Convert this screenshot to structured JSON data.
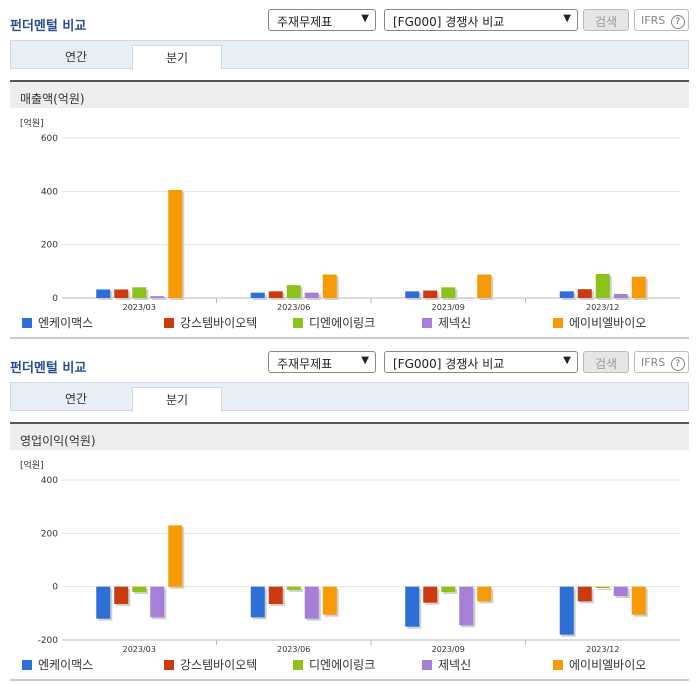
{
  "colors": [
    "#2d6fd6",
    "#cc3a12",
    "#8cc21a",
    "#a680d8",
    "#f79a06"
  ],
  "panels": [
    {
      "title": "펀더멘털 비교",
      "select1": "주재무제표",
      "select2": "[FG000] 경쟁사 비교",
      "search_label": "검색",
      "ifrs_label": "IFRS",
      "help_icon": "?",
      "tabs": [
        "연간",
        "분기"
      ],
      "active_tab": 1,
      "section_title": "매출액(억원)",
      "chart_data": {
        "type": "bar",
        "unit": "[억원]",
        "ylim": [
          0,
          600
        ],
        "yticks": [
          "600",
          "400",
          "200",
          "0"
        ],
        "categories": [
          "2023/03",
          "2023/06",
          "2023/09",
          "2023/12"
        ],
        "series": [
          {
            "name": "엔케이맥스",
            "values": [
              32,
              20,
              25,
              25
            ]
          },
          {
            "name": "강스템바이오텍",
            "values": [
              32,
              25,
              28,
              33
            ]
          },
          {
            "name": "디엔에이링크",
            "values": [
              40,
              48,
              40,
              90
            ]
          },
          {
            "name": "제넥신",
            "values": [
              7,
              20,
              0,
              15
            ]
          },
          {
            "name": "에이비엘바이오",
            "values": [
              405,
              88,
              88,
              80
            ]
          }
        ]
      }
    },
    {
      "title": "펀더멘털 비교",
      "select1": "주재무제표",
      "select2": "[FG000] 경쟁사 비교",
      "search_label": "검색",
      "ifrs_label": "IFRS",
      "help_icon": "?",
      "tabs": [
        "연간",
        "분기"
      ],
      "active_tab": 1,
      "section_title": "영업이익(억원)",
      "chart_data": {
        "type": "bar",
        "unit": "[억원]",
        "ylim": [
          -200,
          400
        ],
        "yticks": [
          "400",
          "200",
          "0",
          "-200"
        ],
        "categories": [
          "2023/03",
          "2023/06",
          "2023/09",
          "2023/12"
        ],
        "series": [
          {
            "name": "엔케이맥스",
            "values": [
              -120,
              -115,
              -150,
              -180
            ]
          },
          {
            "name": "강스템바이오텍",
            "values": [
              -65,
              -65,
              -60,
              -55
            ]
          },
          {
            "name": "디엔에이링크",
            "values": [
              -20,
              -12,
              -20,
              -5
            ]
          },
          {
            "name": "제넥신",
            "values": [
              -115,
              -120,
              -145,
              -35
            ]
          },
          {
            "name": "에이비엘바이오",
            "values": [
              230,
              -105,
              -55,
              -105
            ]
          }
        ]
      }
    }
  ]
}
